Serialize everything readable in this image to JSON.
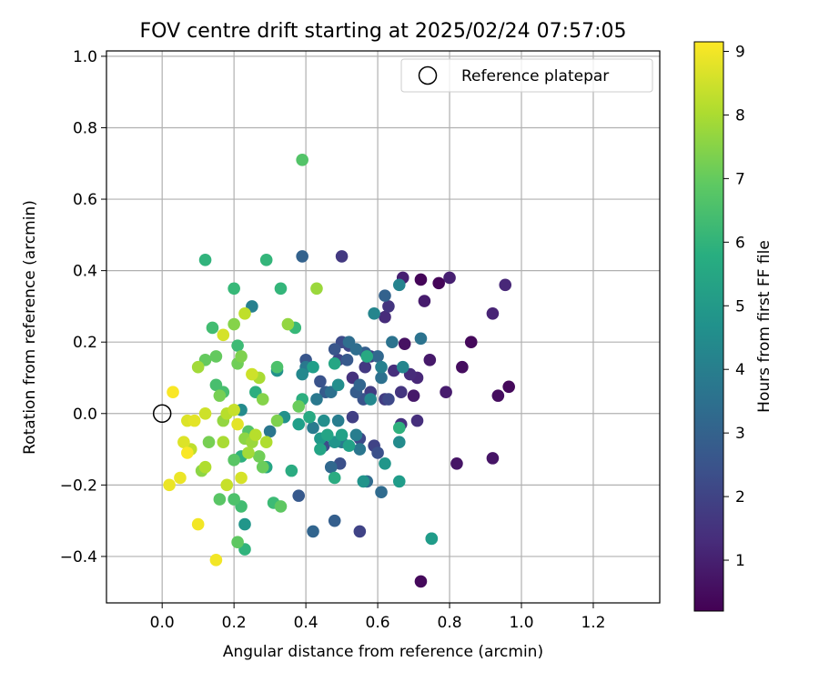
{
  "chart_data": {
    "type": "scatter",
    "title": "FOV centre drift starting at 2025/02/24 07:57:05",
    "xlabel": "Angular distance from reference (arcmin)",
    "ylabel": "Rotation from reference (arcmin)",
    "xlim": [
      -0.155,
      1.385
    ],
    "ylim": [
      -0.53,
      1.015
    ],
    "xticks": [
      0.0,
      0.2,
      0.4,
      0.6,
      0.8,
      1.0,
      1.2
    ],
    "xtick_labels": [
      "0.0",
      "0.2",
      "0.4",
      "0.6",
      "0.8",
      "1.0",
      "1.2"
    ],
    "yticks": [
      -0.4,
      -0.2,
      0.0,
      0.2,
      0.4,
      0.6,
      0.8,
      1.0
    ],
    "ytick_labels": [
      "−0.4",
      "−0.2",
      "0.0",
      "0.2",
      "0.4",
      "0.6",
      "0.8",
      "1.0"
    ],
    "grid": true,
    "legend": {
      "location": "top-right",
      "entries": [
        "Reference platepar"
      ]
    },
    "reference_point": {
      "x": 0.0,
      "y": 0.0,
      "label": "Reference platepar"
    },
    "colorbar": {
      "label": "Hours from first FF file",
      "colormap": "viridis",
      "range": [
        0.2,
        9.15
      ],
      "ticks": [
        1,
        2,
        3,
        4,
        5,
        6,
        7,
        8,
        9
      ],
      "tick_labels": [
        "1",
        "2",
        "3",
        "4",
        "5",
        "6",
        "7",
        "8",
        "9"
      ]
    },
    "points": [
      [
        0.72,
        0.375,
        0.3
      ],
      [
        0.77,
        0.365,
        0.3
      ],
      [
        0.86,
        0.2,
        0.4
      ],
      [
        0.965,
        0.075,
        0.4
      ],
      [
        0.72,
        -0.47,
        0.4
      ],
      [
        0.835,
        0.13,
        0.5
      ],
      [
        0.935,
        0.05,
        0.5
      ],
      [
        0.675,
        0.195,
        0.6
      ],
      [
        0.92,
        -0.125,
        0.7
      ],
      [
        0.82,
        -0.14,
        0.7
      ],
      [
        0.745,
        0.15,
        0.8
      ],
      [
        0.7,
        0.05,
        0.8
      ],
      [
        0.79,
        0.06,
        0.9
      ],
      [
        0.73,
        0.315,
        0.9
      ],
      [
        0.8,
        0.38,
        1.0
      ],
      [
        0.67,
        0.38,
        1.0
      ],
      [
        0.92,
        0.28,
        1.1
      ],
      [
        0.955,
        0.36,
        1.2
      ],
      [
        0.71,
        0.1,
        1.2
      ],
      [
        0.62,
        0.27,
        1.3
      ],
      [
        0.69,
        0.11,
        1.3
      ],
      [
        0.645,
        0.12,
        1.4
      ],
      [
        0.71,
        -0.02,
        1.4
      ],
      [
        0.665,
        -0.03,
        1.5
      ],
      [
        0.53,
        0.1,
        1.5
      ],
      [
        0.665,
        0.06,
        1.6
      ],
      [
        0.63,
        0.3,
        1.6
      ],
      [
        0.5,
        0.44,
        1.7
      ],
      [
        0.565,
        0.13,
        1.7
      ],
      [
        0.58,
        0.06,
        1.8
      ],
      [
        0.62,
        0.04,
        1.8
      ],
      [
        0.53,
        -0.01,
        1.9
      ],
      [
        0.58,
        0.16,
        1.9
      ],
      [
        0.55,
        -0.33,
        2.0
      ],
      [
        0.59,
        -0.09,
        2.0
      ],
      [
        0.49,
        0.15,
        2.1
      ],
      [
        0.52,
        0.19,
        2.1
      ],
      [
        0.55,
        -0.07,
        2.2
      ],
      [
        0.63,
        0.04,
        2.2
      ],
      [
        0.5,
        0.2,
        2.3
      ],
      [
        0.45,
        -0.09,
        2.3
      ],
      [
        0.495,
        -0.14,
        2.4
      ],
      [
        0.6,
        -0.11,
        2.4
      ],
      [
        0.56,
        0.04,
        2.5
      ],
      [
        0.44,
        0.09,
        2.5
      ],
      [
        0.48,
        0.18,
        2.6
      ],
      [
        0.4,
        0.15,
        2.6
      ],
      [
        0.515,
        0.15,
        2.7
      ],
      [
        0.38,
        -0.23,
        2.7
      ],
      [
        0.455,
        0.06,
        2.8
      ],
      [
        0.54,
        0.06,
        2.8
      ],
      [
        0.565,
        0.17,
        2.9
      ],
      [
        0.48,
        -0.3,
        2.9
      ],
      [
        0.62,
        0.33,
        3.0
      ],
      [
        0.39,
        0.44,
        3.0
      ],
      [
        0.42,
        -0.33,
        3.1
      ],
      [
        0.55,
        0.08,
        3.1
      ],
      [
        0.47,
        -0.15,
        3.2
      ],
      [
        0.6,
        0.16,
        3.2
      ],
      [
        0.61,
        -0.22,
        3.3
      ],
      [
        0.57,
        -0.19,
        3.3
      ],
      [
        0.52,
        0.2,
        3.4
      ],
      [
        0.54,
        0.18,
        3.4
      ],
      [
        0.61,
        0.1,
        3.5
      ],
      [
        0.47,
        0.06,
        3.5
      ],
      [
        0.64,
        0.2,
        3.6
      ],
      [
        0.72,
        0.21,
        3.6
      ],
      [
        0.55,
        -0.1,
        3.7
      ],
      [
        0.3,
        -0.05,
        3.7
      ],
      [
        0.4,
        0.13,
        3.8
      ],
      [
        0.43,
        0.04,
        3.8
      ],
      [
        0.42,
        -0.04,
        3.9
      ],
      [
        0.5,
        -0.08,
        3.9
      ],
      [
        0.54,
        -0.06,
        4.0
      ],
      [
        0.49,
        -0.02,
        4.0
      ],
      [
        0.61,
        0.13,
        4.1
      ],
      [
        0.25,
        0.3,
        4.1
      ],
      [
        0.66,
        0.36,
        4.2
      ],
      [
        0.75,
        -0.35,
        4.2
      ],
      [
        0.59,
        0.28,
        4.3
      ],
      [
        0.67,
        0.13,
        4.3
      ],
      [
        0.39,
        0.11,
        4.4
      ],
      [
        0.58,
        0.04,
        4.4
      ],
      [
        0.66,
        -0.08,
        4.5
      ],
      [
        0.22,
        0.01,
        4.5
      ],
      [
        0.49,
        0.08,
        4.6
      ],
      [
        0.45,
        -0.02,
        4.6
      ],
      [
        0.34,
        -0.01,
        4.7
      ],
      [
        0.32,
        0.12,
        4.7
      ],
      [
        0.48,
        -0.08,
        4.8
      ],
      [
        0.56,
        -0.19,
        4.8
      ],
      [
        0.62,
        -0.14,
        4.9
      ],
      [
        0.23,
        -0.31,
        4.9
      ],
      [
        0.44,
        -0.07,
        5.0
      ],
      [
        0.66,
        -0.19,
        5.1
      ],
      [
        0.75,
        -0.35,
        5.1
      ],
      [
        0.42,
        0.13,
        5.2
      ],
      [
        0.38,
        -0.03,
        5.2
      ],
      [
        0.5,
        -0.06,
        5.3
      ],
      [
        0.52,
        -0.09,
        5.3
      ],
      [
        0.46,
        -0.06,
        5.4
      ],
      [
        0.44,
        -0.1,
        5.4
      ],
      [
        0.29,
        -0.15,
        5.5
      ],
      [
        0.48,
        0.14,
        5.5
      ],
      [
        0.57,
        0.16,
        5.6
      ],
      [
        0.41,
        -0.01,
        5.6
      ],
      [
        0.36,
        -0.16,
        5.7
      ],
      [
        0.48,
        -0.18,
        5.7
      ],
      [
        0.39,
        0.04,
        5.8
      ],
      [
        0.26,
        0.06,
        5.8
      ],
      [
        0.66,
        -0.04,
        5.9
      ],
      [
        0.22,
        -0.12,
        5.9
      ],
      [
        0.23,
        -0.38,
        6.0
      ],
      [
        0.12,
        0.43,
        6.0
      ],
      [
        0.29,
        0.43,
        6.1
      ],
      [
        0.33,
        0.35,
        6.1
      ],
      [
        0.2,
        0.35,
        6.2
      ],
      [
        0.37,
        0.24,
        6.2
      ],
      [
        0.21,
        0.19,
        6.3
      ],
      [
        0.31,
        -0.25,
        6.3
      ],
      [
        0.22,
        -0.26,
        6.4
      ],
      [
        0.14,
        0.24,
        6.4
      ],
      [
        0.17,
        0.06,
        6.5
      ],
      [
        0.15,
        0.08,
        6.5
      ],
      [
        0.2,
        -0.24,
        6.6
      ],
      [
        0.32,
        0.13,
        6.6
      ],
      [
        0.24,
        -0.05,
        6.7
      ],
      [
        0.39,
        0.71,
        6.7
      ],
      [
        0.2,
        -0.13,
        6.8
      ],
      [
        0.16,
        -0.24,
        6.8
      ],
      [
        0.33,
        -0.26,
        6.9
      ],
      [
        0.21,
        -0.36,
        6.9
      ],
      [
        0.12,
        0.15,
        7.0
      ],
      [
        0.15,
        0.16,
        7.0
      ],
      [
        0.28,
        -0.15,
        7.1
      ],
      [
        0.38,
        0.02,
        7.1
      ],
      [
        0.27,
        -0.12,
        7.2
      ],
      [
        0.21,
        0.14,
        7.2
      ],
      [
        0.16,
        0.05,
        7.3
      ],
      [
        0.13,
        -0.08,
        7.3
      ],
      [
        0.22,
        0.16,
        7.4
      ],
      [
        0.32,
        -0.02,
        7.4
      ],
      [
        0.28,
        0.04,
        7.5
      ],
      [
        0.2,
        0.25,
        7.5
      ],
      [
        0.11,
        -0.16,
        7.6
      ],
      [
        0.23,
        -0.07,
        7.6
      ],
      [
        0.17,
        -0.02,
        7.7
      ],
      [
        0.35,
        0.25,
        7.7
      ],
      [
        0.43,
        0.35,
        7.8
      ],
      [
        0.25,
        -0.08,
        7.8
      ],
      [
        0.24,
        -0.11,
        7.9
      ],
      [
        0.1,
        0.13,
        7.9
      ],
      [
        0.17,
        -0.08,
        8.0
      ],
      [
        0.27,
        0.1,
        8.0
      ],
      [
        0.12,
        -0.15,
        8.1
      ],
      [
        0.29,
        -0.08,
        8.1
      ],
      [
        0.18,
        0.0,
        8.2
      ],
      [
        0.26,
        -0.06,
        8.2
      ],
      [
        0.23,
        0.28,
        8.3
      ],
      [
        0.08,
        -0.1,
        8.3
      ],
      [
        0.18,
        -0.2,
        8.4
      ],
      [
        0.2,
        0.01,
        8.4
      ],
      [
        0.12,
        0.0,
        8.5
      ],
      [
        0.25,
        0.11,
        8.5
      ],
      [
        0.22,
        -0.18,
        8.6
      ],
      [
        0.17,
        0.22,
        8.6
      ],
      [
        0.07,
        -0.02,
        8.7
      ],
      [
        0.06,
        -0.08,
        8.7
      ],
      [
        0.09,
        -0.02,
        8.8
      ],
      [
        0.21,
        -0.03,
        8.8
      ],
      [
        0.02,
        -0.2,
        8.9
      ],
      [
        0.05,
        -0.18,
        8.9
      ],
      [
        0.1,
        -0.31,
        9.0
      ],
      [
        0.15,
        -0.41,
        9.0
      ],
      [
        0.03,
        0.06,
        9.1
      ],
      [
        0.07,
        -0.11,
        9.1
      ]
    ]
  }
}
